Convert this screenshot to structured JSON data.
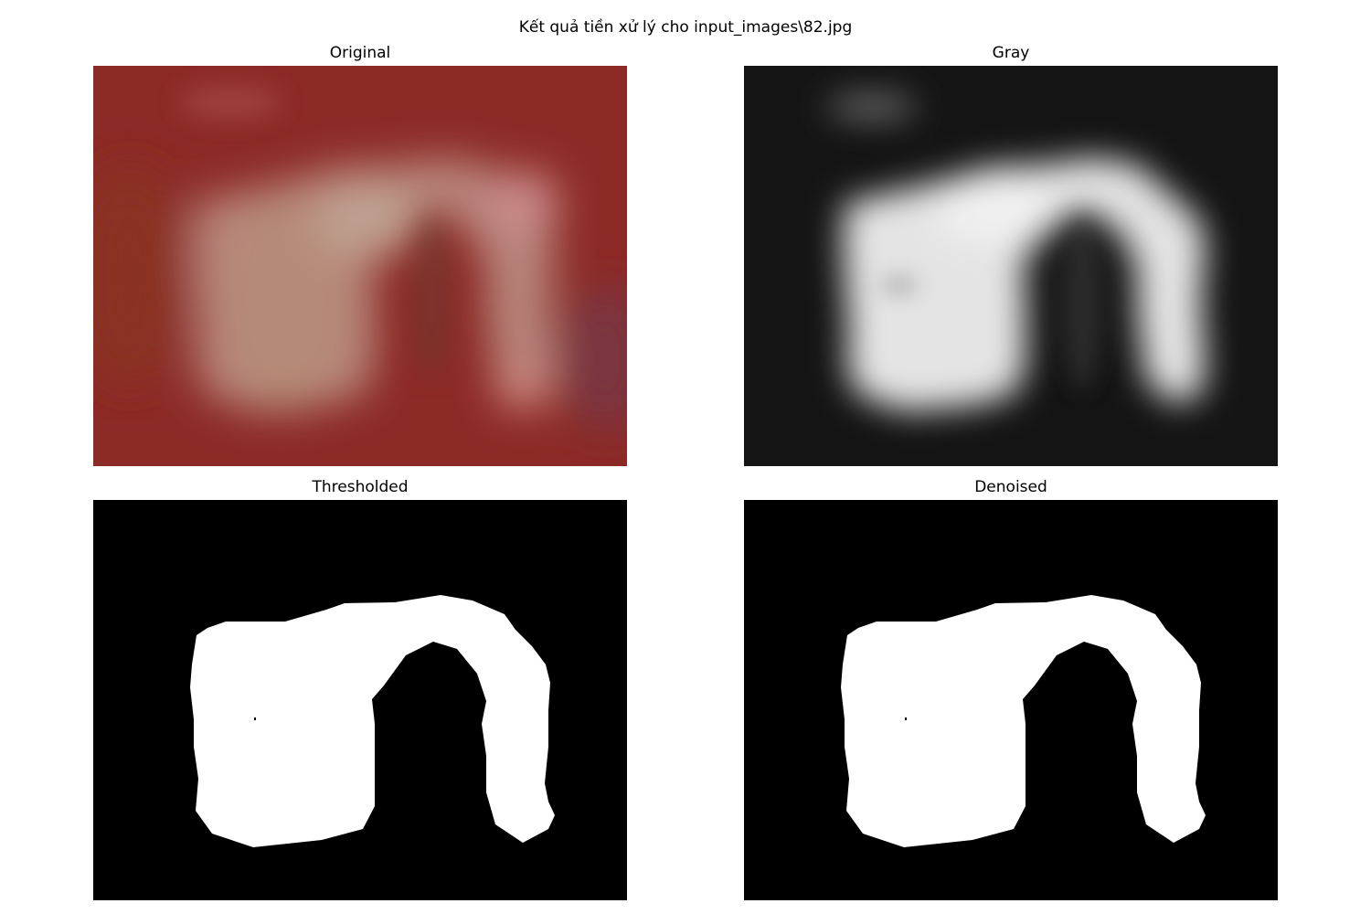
{
  "figure": {
    "title": "Kết quả tiền xử lý cho input_images\\82.jpg"
  },
  "panels": [
    {
      "title": "Original"
    },
    {
      "title": "Gray"
    },
    {
      "title": "Thresholded"
    },
    {
      "title": "Denoised"
    }
  ],
  "colors": {
    "background": "#ffffff",
    "original_base": "#8c2a26",
    "original_arch": "#b8857c",
    "original_arch_light": "#c99a8c",
    "gray_base": "#141414",
    "gray_arch": "#e4e4e4",
    "mask_background": "#000000",
    "mask_foreground": "#ffffff"
  }
}
